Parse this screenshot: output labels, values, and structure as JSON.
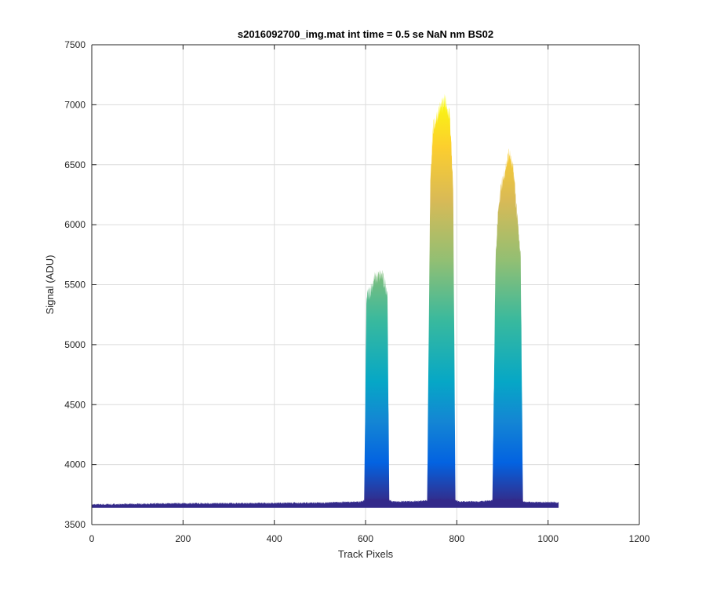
{
  "chart_data": {
    "type": "area",
    "title": "s2016092700_img.mat int time = 0.5 se  NaN nm BS02",
    "xlabel": "Track Pixels",
    "ylabel": "Signal (ADU)",
    "xlim": [
      0,
      1200
    ],
    "ylim": [
      3500,
      7500
    ],
    "xticks": [
      0,
      200,
      400,
      600,
      800,
      1000,
      1200
    ],
    "yticks": [
      3500,
      4000,
      4500,
      5000,
      5500,
      6000,
      6500,
      7000,
      7500
    ],
    "grid": true,
    "colormap": "parula",
    "baseline": 3680,
    "signal_profile": {
      "x": [
        0,
        100,
        200,
        300,
        400,
        500,
        590,
        597,
        602,
        620,
        635,
        648,
        652,
        660,
        700,
        735,
        742,
        748,
        760,
        775,
        785,
        792,
        797,
        805,
        850,
        878,
        885,
        892,
        905,
        915,
        925,
        940,
        945,
        955,
        1000,
        1023
      ],
      "y": [
        3665,
        3670,
        3675,
        3675,
        3678,
        3680,
        3690,
        3700,
        5380,
        5550,
        5580,
        5450,
        3700,
        3690,
        3690,
        3700,
        6400,
        6800,
        6950,
        7030,
        6900,
        6300,
        3700,
        3690,
        3690,
        3700,
        5700,
        6200,
        6450,
        6600,
        6420,
        5700,
        3690,
        3685,
        3685,
        3685
      ]
    },
    "peaks": [
      {
        "x_start": 598,
        "x_end": 650,
        "max_signal": 5600
      },
      {
        "x_start": 740,
        "x_end": 795,
        "max_signal": 7050
      },
      {
        "x_start": 882,
        "x_end": 945,
        "max_signal": 6650
      }
    ]
  }
}
